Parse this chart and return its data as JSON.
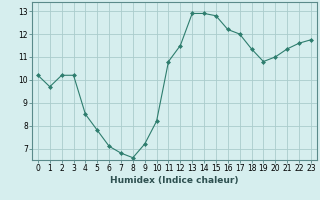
{
  "x": [
    0,
    1,
    2,
    3,
    4,
    5,
    6,
    7,
    8,
    9,
    10,
    11,
    12,
    13,
    14,
    15,
    16,
    17,
    18,
    19,
    20,
    21,
    22,
    23
  ],
  "y": [
    10.2,
    9.7,
    10.2,
    10.2,
    8.5,
    7.8,
    7.1,
    6.8,
    6.6,
    7.2,
    8.2,
    10.8,
    11.5,
    12.9,
    12.9,
    12.8,
    12.2,
    12.0,
    11.35,
    10.8,
    11.0,
    11.35,
    11.6,
    11.75
  ],
  "line_color": "#2e7d6e",
  "marker": "D",
  "marker_size": 2.0,
  "bg_color": "#d6eeee",
  "grid_color": "#aacccc",
  "xlabel": "Humidex (Indice chaleur)",
  "ylabel": "",
  "title": "",
  "xlim": [
    -0.5,
    23.5
  ],
  "ylim": [
    6.5,
    13.4
  ],
  "yticks": [
    7,
    8,
    9,
    10,
    11,
    12,
    13
  ],
  "xticks": [
    0,
    1,
    2,
    3,
    4,
    5,
    6,
    7,
    8,
    9,
    10,
    11,
    12,
    13,
    14,
    15,
    16,
    17,
    18,
    19,
    20,
    21,
    22,
    23
  ],
  "xtick_labels": [
    "0",
    "1",
    "2",
    "3",
    "4",
    "5",
    "6",
    "7",
    "8",
    "9",
    "10",
    "11",
    "12",
    "13",
    "14",
    "15",
    "16",
    "17",
    "18",
    "19",
    "20",
    "21",
    "22",
    "23"
  ],
  "font_size": 5.5,
  "xlabel_fontsize": 6.5
}
